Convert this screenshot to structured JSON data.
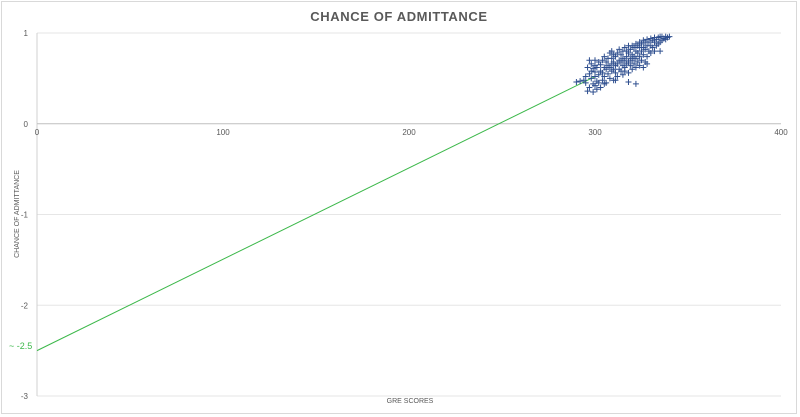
{
  "chart_data": {
    "type": "scatter",
    "title": "CHANCE OF ADMITTANCE",
    "xlabel": "GRE SCORES",
    "ylabel": "CHANCE OF ADMITTANCE",
    "xlim": [
      0,
      400
    ],
    "ylim": [
      -3,
      1
    ],
    "x_ticks": [
      "0",
      "100",
      "200",
      "300",
      "400"
    ],
    "y_ticks": [
      "1",
      "0",
      "-1",
      "-2",
      "-3"
    ],
    "grid": true,
    "legend": "none",
    "marker": "plus",
    "marker_color": "#2f4f8f",
    "trendline": {
      "color": "#3cb84a",
      "points": [
        [
          0,
          -2.5
        ],
        [
          300,
          0.52
        ]
      ]
    },
    "annotation": {
      "text": "~ -2.5",
      "x": 0,
      "y": -2.5
    },
    "series": [
      {
        "points": [
          [
            290,
            0.46
          ],
          [
            292,
            0.47
          ],
          [
            294,
            0.48
          ],
          [
            295,
            0.45
          ],
          [
            295,
            0.52
          ],
          [
            296,
            0.36
          ],
          [
            296,
            0.62
          ],
          [
            297,
            0.4
          ],
          [
            297,
            0.55
          ],
          [
            298,
            0.5
          ],
          [
            298,
            0.58
          ],
          [
            298,
            0.66
          ],
          [
            299,
            0.35
          ],
          [
            299,
            0.44
          ],
          [
            299,
            0.61
          ],
          [
            300,
            0.42
          ],
          [
            300,
            0.52
          ],
          [
            300,
            0.57
          ],
          [
            300,
            0.64
          ],
          [
            300,
            0.7
          ],
          [
            301,
            0.38
          ],
          [
            301,
            0.47
          ],
          [
            301,
            0.62
          ],
          [
            302,
            0.45
          ],
          [
            302,
            0.54
          ],
          [
            302,
            0.68
          ],
          [
            303,
            0.4
          ],
          [
            303,
            0.58
          ],
          [
            303,
            0.65
          ],
          [
            304,
            0.48
          ],
          [
            304,
            0.56
          ],
          [
            304,
            0.7
          ],
          [
            305,
            0.52
          ],
          [
            305,
            0.62
          ],
          [
            305,
            0.74
          ],
          [
            306,
            0.45
          ],
          [
            306,
            0.6
          ],
          [
            306,
            0.68
          ],
          [
            307,
            0.55
          ],
          [
            307,
            0.64
          ],
          [
            307,
            0.72
          ],
          [
            308,
            0.5
          ],
          [
            308,
            0.62
          ],
          [
            308,
            0.78
          ],
          [
            309,
            0.58
          ],
          [
            309,
            0.66
          ],
          [
            309,
            0.72
          ],
          [
            310,
            0.48
          ],
          [
            310,
            0.6
          ],
          [
            310,
            0.68
          ],
          [
            310,
            0.76
          ],
          [
            311,
            0.56
          ],
          [
            311,
            0.64
          ],
          [
            311,
            0.74
          ],
          [
            312,
            0.52
          ],
          [
            312,
            0.66
          ],
          [
            312,
            0.78
          ],
          [
            313,
            0.6
          ],
          [
            313,
            0.7
          ],
          [
            313,
            0.82
          ],
          [
            314,
            0.58
          ],
          [
            314,
            0.68
          ],
          [
            314,
            0.76
          ],
          [
            315,
            0.54
          ],
          [
            315,
            0.64
          ],
          [
            315,
            0.72
          ],
          [
            315,
            0.8
          ],
          [
            316,
            0.62
          ],
          [
            316,
            0.7
          ],
          [
            316,
            0.84
          ],
          [
            317,
            0.66
          ],
          [
            317,
            0.74
          ],
          [
            317,
            0.8
          ],
          [
            318,
            0.56
          ],
          [
            318,
            0.68
          ],
          [
            318,
            0.78
          ],
          [
            318,
            0.86
          ],
          [
            319,
            0.64
          ],
          [
            319,
            0.72
          ],
          [
            319,
            0.82
          ],
          [
            320,
            0.6
          ],
          [
            320,
            0.7
          ],
          [
            320,
            0.76
          ],
          [
            320,
            0.86
          ],
          [
            321,
            0.66
          ],
          [
            321,
            0.74
          ],
          [
            321,
            0.84
          ],
          [
            322,
            0.62
          ],
          [
            322,
            0.72
          ],
          [
            322,
            0.8
          ],
          [
            322,
            0.88
          ],
          [
            323,
            0.68
          ],
          [
            323,
            0.78
          ],
          [
            323,
            0.86
          ],
          [
            324,
            0.64
          ],
          [
            324,
            0.74
          ],
          [
            324,
            0.84
          ],
          [
            324,
            0.9
          ],
          [
            325,
            0.7
          ],
          [
            325,
            0.8
          ],
          [
            325,
            0.88
          ],
          [
            326,
            0.76
          ],
          [
            326,
            0.84
          ],
          [
            326,
            0.92
          ],
          [
            327,
            0.68
          ],
          [
            327,
            0.82
          ],
          [
            327,
            0.9
          ],
          [
            328,
            0.74
          ],
          [
            328,
            0.86
          ],
          [
            328,
            0.93
          ],
          [
            329,
            0.8
          ],
          [
            329,
            0.9
          ],
          [
            330,
            0.78
          ],
          [
            330,
            0.86
          ],
          [
            330,
            0.94
          ],
          [
            331,
            0.84
          ],
          [
            331,
            0.92
          ],
          [
            332,
            0.8
          ],
          [
            332,
            0.9
          ],
          [
            332,
            0.95
          ],
          [
            333,
            0.86
          ],
          [
            333,
            0.93
          ],
          [
            334,
            0.88
          ],
          [
            334,
            0.95
          ],
          [
            335,
            0.9
          ],
          [
            335,
            0.96
          ],
          [
            336,
            0.92
          ],
          [
            336,
            0.96
          ],
          [
            337,
            0.94
          ],
          [
            338,
            0.93
          ],
          [
            338,
            0.96
          ],
          [
            339,
            0.95
          ],
          [
            340,
            0.96
          ],
          [
            311,
            0.48
          ],
          [
            316,
            0.58
          ],
          [
            322,
            0.44
          ],
          [
            326,
            0.62
          ],
          [
            318,
            0.46
          ],
          [
            297,
            0.7
          ],
          [
            305,
            0.44
          ],
          [
            328,
            0.66
          ],
          [
            335,
            0.8
          ],
          [
            309,
            0.8
          ]
        ]
      }
    ]
  }
}
